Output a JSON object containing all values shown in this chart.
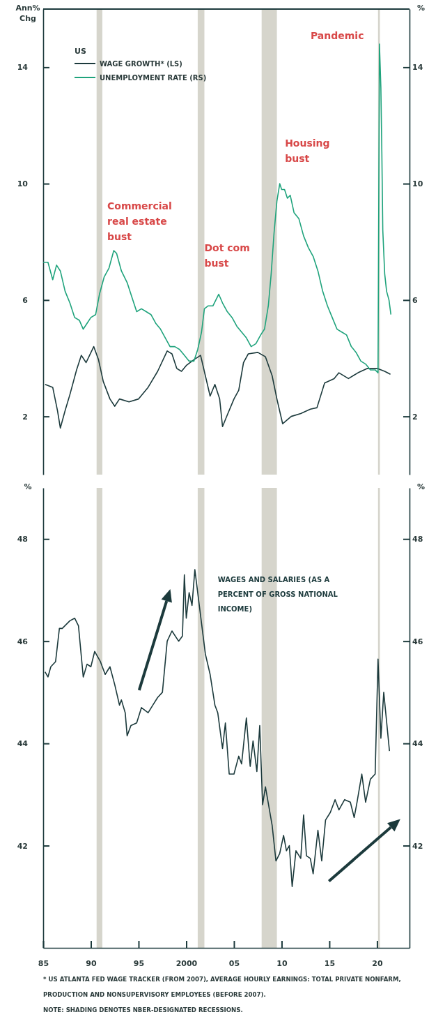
{
  "chart_data": [
    {
      "type": "line",
      "ylabel": "Ann% Chg",
      "y2label": "%",
      "legend_title": "US",
      "legend": "top left",
      "tick_labels": "y",
      "grid": false,
      "xlim": [
        1985,
        2023.4
      ],
      "ylim": [
        0,
        16
      ],
      "yticks": [
        2,
        6,
        10,
        14
      ],
      "y2lim": [
        0,
        16
      ],
      "y2ticks": [
        2,
        6,
        10,
        14
      ],
      "bands": [
        {
          "axis": "x",
          "from": 1990.6,
          "to": 1991.2,
          "color": "#d6d5cc"
        },
        {
          "axis": "x",
          "from": 2001.2,
          "to": 2001.9,
          "color": "#d6d5cc"
        },
        {
          "axis": "x",
          "from": 2007.9,
          "to": 2009.5,
          "color": "#d6d5cc"
        },
        {
          "axis": "x",
          "from": 2020.1,
          "to": 2020.3,
          "color": "#d6d5cc"
        }
      ],
      "annotations": [
        "Commercial real estate bust",
        "Dot com bust",
        "Housing bust",
        "Pandemic"
      ],
      "series": [
        {
          "name": "WAGE GROWTH* (LS)",
          "color": "#1c3a3c",
          "x": [
            1985.2,
            1986.0,
            1986.5,
            1986.8,
            1987.3,
            1987.8,
            1988.5,
            1989.0,
            1989.5,
            1990.3,
            1990.8,
            1991.3,
            1992.0,
            1992.5,
            1993.0,
            1994.0,
            1995.0,
            1996.0,
            1997.0,
            1998.0,
            1998.5,
            1999.0,
            1999.5,
            2000.0,
            2000.8,
            2001.5,
            2002.0,
            2002.5,
            2003.0,
            2003.5,
            2003.8,
            2004.3,
            2005.0,
            2005.5,
            2006.0,
            2006.5,
            2007.5,
            2008.3,
            2009.0,
            2009.5,
            2010.1,
            2011.0,
            2012.0,
            2013.0,
            2013.7,
            2014.5,
            2015.5,
            2016.0,
            2017.0,
            2018.0,
            2019.0,
            2020.0,
            2020.8,
            2021.4
          ],
          "values": [
            3.1,
            3.0,
            2.2,
            1.6,
            2.2,
            2.75,
            3.6,
            4.1,
            3.85,
            4.4,
            3.95,
            3.2,
            2.6,
            2.35,
            2.6,
            2.5,
            2.6,
            3.0,
            3.55,
            4.25,
            4.15,
            3.65,
            3.55,
            3.75,
            3.95,
            4.1,
            3.4,
            2.7,
            3.1,
            2.6,
            1.65,
            2.05,
            2.6,
            2.9,
            3.85,
            4.15,
            4.2,
            4.05,
            3.4,
            2.6,
            1.75,
            2.0,
            2.1,
            2.25,
            2.3,
            3.15,
            3.3,
            3.5,
            3.3,
            3.5,
            3.65,
            3.65,
            3.55,
            3.45
          ]
        },
        {
          "name": "UNEMPLOYMENT RATE (RS)",
          "color": "#1fa37c",
          "x": [
            1985.0,
            1985.5,
            1986.0,
            1986.4,
            1986.8,
            1987.3,
            1987.8,
            1988.3,
            1988.8,
            1989.2,
            1989.6,
            1990.0,
            1990.5,
            1990.9,
            1991.4,
            1991.9,
            1992.4,
            1992.7,
            1993.2,
            1993.8,
            1994.3,
            1994.8,
            1995.3,
            1995.8,
            1996.3,
            1996.8,
            1997.3,
            1997.8,
            1998.3,
            1998.8,
            1999.3,
            1999.8,
            2000.3,
            2000.8,
            2001.2,
            2001.6,
            2001.9,
            2002.3,
            2002.8,
            2003.4,
            2003.8,
            2004.3,
            2004.8,
            2005.3,
            2005.8,
            2006.3,
            2006.8,
            2007.3,
            2007.8,
            2008.2,
            2008.6,
            2008.9,
            2009.2,
            2009.5,
            2009.8,
            2010.0,
            2010.3,
            2010.6,
            2010.9,
            2011.3,
            2011.8,
            2012.3,
            2012.8,
            2013.3,
            2013.8,
            2014.3,
            2014.8,
            2015.3,
            2015.8,
            2016.3,
            2016.8,
            2017.3,
            2017.8,
            2018.3,
            2018.8,
            2019.3,
            2019.8,
            2020.1,
            2020.25,
            2020.4,
            2020.5,
            2020.6,
            2020.8,
            2021.0,
            2021.25,
            2021.45
          ],
          "values": [
            7.3,
            7.3,
            6.7,
            7.2,
            7.0,
            6.3,
            5.9,
            5.4,
            5.3,
            5.0,
            5.2,
            5.4,
            5.5,
            6.2,
            6.8,
            7.1,
            7.7,
            7.6,
            7.0,
            6.6,
            6.1,
            5.6,
            5.7,
            5.6,
            5.5,
            5.2,
            5.0,
            4.7,
            4.4,
            4.4,
            4.3,
            4.1,
            3.9,
            3.9,
            4.3,
            4.9,
            5.7,
            5.8,
            5.8,
            6.2,
            5.9,
            5.6,
            5.4,
            5.1,
            4.9,
            4.7,
            4.4,
            4.5,
            4.8,
            5.0,
            5.8,
            6.9,
            8.3,
            9.4,
            10.0,
            9.8,
            9.8,
            9.5,
            9.6,
            9.0,
            8.8,
            8.2,
            7.8,
            7.5,
            7.0,
            6.3,
            5.8,
            5.4,
            5.0,
            4.9,
            4.8,
            4.4,
            4.2,
            3.9,
            3.8,
            3.6,
            3.6,
            3.5,
            14.8,
            13.3,
            11.1,
            8.4,
            6.9,
            6.3,
            6.0,
            5.5
          ]
        }
      ]
    },
    {
      "type": "line",
      "ylabel": "%",
      "y2label": "%",
      "grid": false,
      "xlim": [
        1985,
        2023.4
      ],
      "xticks": [
        {
          "value": 1985,
          "label": "85"
        },
        {
          "value": 1990,
          "label": "90"
        },
        {
          "value": 1995,
          "label": "95"
        },
        {
          "value": 2000,
          "label": "2000"
        },
        {
          "value": 2005,
          "label": "05"
        },
        {
          "value": 2010,
          "label": "10"
        },
        {
          "value": 2015,
          "label": "15"
        },
        {
          "value": 2020,
          "label": "20"
        }
      ],
      "ylim": [
        40,
        49
      ],
      "yticks": [
        42,
        44,
        46,
        48
      ],
      "y2lim": [
        40,
        49
      ],
      "y2ticks": [
        42,
        44,
        46,
        48
      ],
      "bands": [
        {
          "axis": "x",
          "from": 1990.6,
          "to": 1991.2,
          "color": "#d6d5cc"
        },
        {
          "axis": "x",
          "from": 2001.2,
          "to": 2001.9,
          "color": "#d6d5cc"
        },
        {
          "axis": "x",
          "from": 2007.9,
          "to": 2009.5,
          "color": "#d6d5cc"
        },
        {
          "axis": "x",
          "from": 2020.1,
          "to": 2020.3,
          "color": "#d6d5cc"
        }
      ],
      "annotations": [
        "* US ATLANTA FED WAGE TRACKER (FROM 2007), AVERAGE HOURLY EARNINGS: TOTAL PRIVATE NONFARM, PRODUCTION AND NONSUPERVISORY EMPLOYEES (BEFORE 2007).",
        "NOTE: SHADING DENOTES NBER-DESIGNATED RECESSIONS."
      ],
      "series": [
        {
          "name": "WAGES AND SALARIES (AS A PERCENT OF GROSS NATIONAL INCOME)",
          "color": "#1c3a3c",
          "x": [
            1985.2,
            1985.5,
            1985.8,
            1986.3,
            1986.7,
            1987.0,
            1987.8,
            1988.3,
            1988.7,
            1989.2,
            1989.6,
            1990.0,
            1990.4,
            1991.0,
            1991.5,
            1992.0,
            1992.5,
            1993.0,
            1993.2,
            1993.6,
            1993.8,
            1994.2,
            1994.8,
            1995.3,
            1996.0,
            1996.5,
            1997.0,
            1997.5,
            1998.0,
            1998.5,
            1999.2,
            1999.6,
            1999.8,
            2000.0,
            2000.3,
            2000.6,
            2000.9,
            2001.4,
            2002.0,
            2002.5,
            2003.0,
            2003.3,
            2003.8,
            2004.1,
            2004.5,
            2005.0,
            2005.5,
            2005.8,
            2006.3,
            2006.7,
            2007.0,
            2007.4,
            2007.7,
            2008.0,
            2008.3,
            2009.0,
            2009.4,
            2009.8,
            2010.2,
            2010.5,
            2010.8,
            2011.1,
            2011.5,
            2012.0,
            2012.3,
            2012.6,
            2013.0,
            2013.3,
            2013.8,
            2014.2,
            2014.6,
            2015.1,
            2015.6,
            2016.0,
            2016.6,
            2017.2,
            2017.6,
            2017.9,
            2018.4,
            2018.8,
            2019.3,
            2019.8,
            2020.1,
            2020.4,
            2020.7,
            2021.3
          ],
          "values": [
            45.4,
            45.3,
            45.5,
            45.6,
            46.25,
            46.25,
            46.4,
            46.45,
            46.3,
            45.3,
            45.55,
            45.5,
            45.8,
            45.6,
            45.35,
            45.5,
            45.15,
            44.75,
            44.85,
            44.6,
            44.15,
            44.35,
            44.4,
            44.7,
            44.6,
            44.75,
            44.9,
            45.0,
            46.0,
            46.2,
            46.0,
            46.1,
            47.3,
            46.45,
            46.95,
            46.7,
            47.4,
            46.65,
            45.75,
            45.35,
            44.75,
            44.6,
            43.9,
            44.4,
            43.4,
            43.4,
            43.75,
            43.6,
            44.5,
            43.55,
            44.05,
            43.45,
            44.35,
            42.8,
            43.15,
            42.4,
            41.7,
            41.85,
            42.2,
            41.9,
            42.0,
            41.2,
            41.9,
            41.75,
            42.6,
            41.8,
            41.75,
            41.45,
            42.3,
            41.7,
            42.5,
            42.65,
            42.9,
            42.7,
            42.9,
            42.85,
            42.55,
            42.85,
            43.4,
            42.85,
            43.3,
            43.4,
            45.65,
            44.1,
            45.0,
            43.85
          ]
        }
      ]
    }
  ]
}
